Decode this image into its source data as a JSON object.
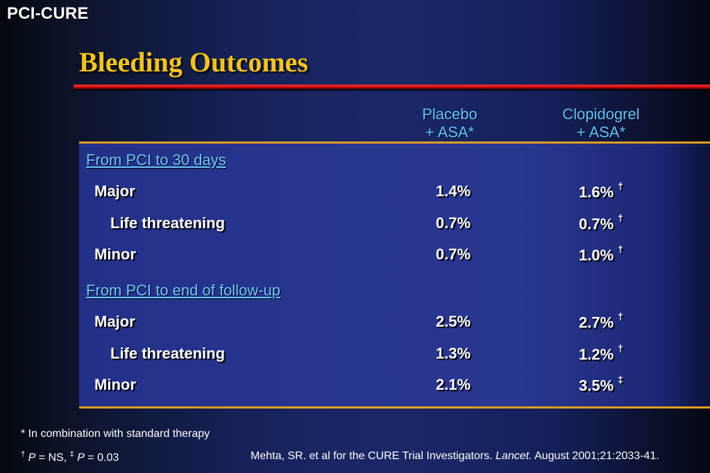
{
  "header": {
    "brand": "PCI-CURE",
    "title": "Bleeding Outcomes"
  },
  "columns": {
    "placebo_line1": "Placebo",
    "placebo_line2": "+ ASA*",
    "clopidogrel_line1": "Clopidogrel",
    "clopidogrel_line2": "+ ASA*"
  },
  "sections": [
    {
      "heading": "From PCI to 30 days",
      "rows": [
        {
          "label": "Major",
          "placebo": "1.4%",
          "clopidogrel": "1.6%",
          "mark": "†"
        },
        {
          "label": "Life threatening",
          "placebo": "0.7%",
          "clopidogrel": "0.7%",
          "mark": "†"
        },
        {
          "label": "Minor",
          "placebo": "0.7%",
          "clopidogrel": "1.0%",
          "mark": "†"
        }
      ]
    },
    {
      "heading": "From PCI to end of follow-up",
      "rows": [
        {
          "label": "Major",
          "placebo": "2.5%",
          "clopidogrel": "2.7%",
          "mark": "†"
        },
        {
          "label": "Life threatening",
          "placebo": "1.3%",
          "clopidogrel": "1.2%",
          "mark": "†"
        },
        {
          "label": "Minor",
          "placebo": "2.1%",
          "clopidogrel": "3.5%",
          "mark": "‡"
        }
      ]
    }
  ],
  "footnotes": {
    "asterisk": "* In combination with standard therapy",
    "dagger_mark": "†",
    "p_letter": "P",
    "dagger_text": " = NS, ",
    "ddagger_mark": "‡",
    "p_letter2": "P",
    "ddagger_text": " = 0.03",
    "citation_pre": "Mehta, SR. et al for the CURE Trial Investigators. ",
    "citation_journal": "Lancet.",
    "citation_post": " August 2001;21:2033-41."
  }
}
